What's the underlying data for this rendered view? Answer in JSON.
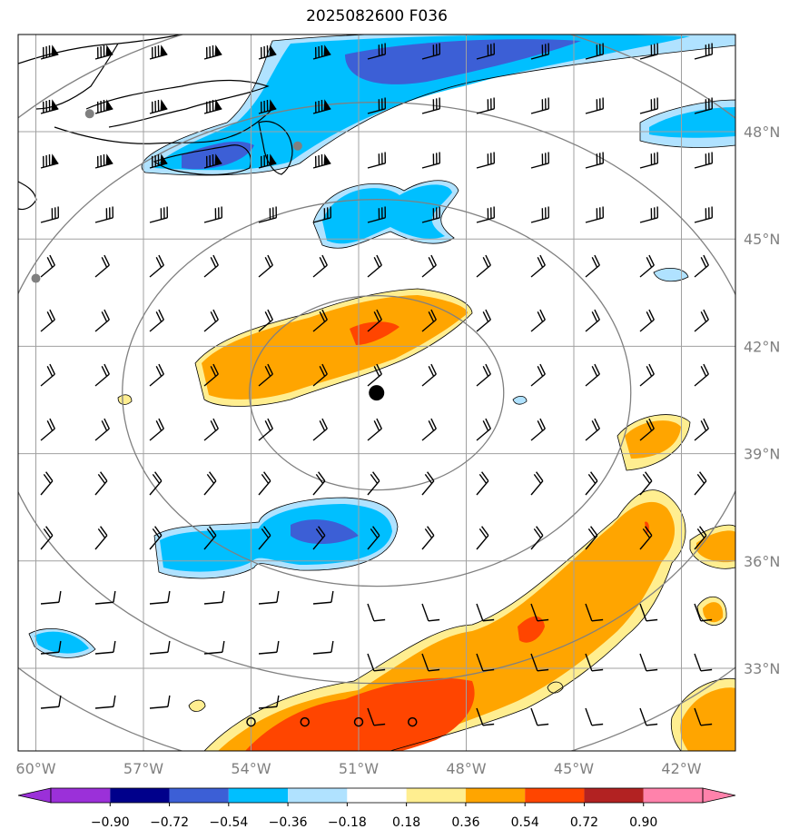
{
  "title": "2025082600 F036",
  "lat_labels": [
    "48°N",
    "45°N",
    "42°N",
    "39°N",
    "36°N",
    "33°N"
  ],
  "lon_labels": [
    "60°W",
    "57°W",
    "54°W",
    "51°W",
    "48°W",
    "45°W",
    "42°W"
  ],
  "colorbar": {
    "tick_labels": [
      "−0.90",
      "−0.72",
      "−0.54",
      "−0.36",
      "−0.18",
      "0.18",
      "0.36",
      "0.54",
      "0.72",
      "0.90"
    ],
    "colors": [
      "#9b30d9",
      "#00008b",
      "#3c5fd6",
      "#00bfff",
      "#b0e2ff",
      "#ffffff",
      "#ffee90",
      "#ffa500",
      "#ff4500",
      "#b22222",
      "#ff82ab"
    ]
  },
  "center_marker": {
    "lon": -50.5,
    "lat": 40.7
  },
  "range_rings": "concentric rings around center",
  "station_markers": [
    {
      "lon": -58.5,
      "lat": 48.5,
      "type": "gray-dot"
    },
    {
      "lon": -52.7,
      "lat": 47.6,
      "type": "gray-dot"
    },
    {
      "lon": -60.0,
      "lat": 43.9,
      "type": "gray-dot"
    }
  ],
  "calm_markers": [
    {
      "lon": -54.0,
      "lat": 31.5
    },
    {
      "lon": -52.5,
      "lat": 31.5
    },
    {
      "lon": -51.0,
      "lat": 31.5
    },
    {
      "lon": -49.5,
      "lat": 31.5
    }
  ]
}
